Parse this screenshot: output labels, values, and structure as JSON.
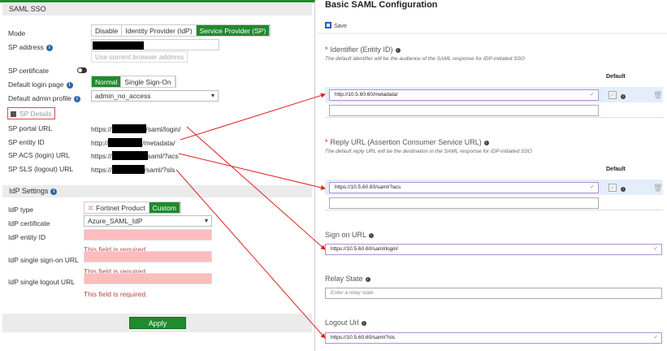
{
  "left": {
    "header": "SAML SSO",
    "mode": {
      "label": "Mode",
      "options": [
        "Disable",
        "Identity Provider (IdP)",
        "Service Provider (SP)"
      ],
      "selected": "Service Provider (SP)"
    },
    "sp_address": {
      "label": "SP address",
      "button": "Use current browser address"
    },
    "sp_certificate": {
      "label": "SP certificate",
      "enabled": false
    },
    "default_login_page": {
      "label": "Default login page",
      "options": [
        "Normal",
        "Single Sign-On"
      ],
      "selected": "Normal"
    },
    "default_admin_profile": {
      "label": "Default admin profile",
      "value": "admin_no_access"
    },
    "sp_details": {
      "label": "SP Details",
      "rows": [
        {
          "label": "SP portal URL",
          "prefix": "https://",
          "suffix": "/saml/login/"
        },
        {
          "label": "SP entity ID",
          "prefix": "http://",
          "suffix": "/metadata/"
        },
        {
          "label": "SP ACS (login) URL",
          "prefix": "https://",
          "suffix": "saml/?acs"
        },
        {
          "label": "SP SLS (logout) URL",
          "prefix": "https://",
          "suffix": "/saml/?sls"
        }
      ]
    },
    "idp_header": "IdP Settings",
    "idp_type": {
      "label": "IdP type",
      "options": [
        "Fortinet Product",
        "Custom"
      ],
      "selected": "Custom"
    },
    "idp_certificate": {
      "label": "IdP certificate",
      "value": "Azure_SAML_IdP"
    },
    "idp_entity_id": {
      "label": "IdP entity ID",
      "error": "This field is required."
    },
    "idp_sso_url": {
      "label": "IdP single sign-on URL",
      "error": "This field is required."
    },
    "idp_slo_url": {
      "label": "IdP single logout URL",
      "error": "This field is required."
    },
    "apply": "Apply"
  },
  "right": {
    "title": "Basic SAML Configuration",
    "save": "Save",
    "identifier": {
      "label": "Identifier (Entity ID)",
      "description": "The default identifier will be the audience of the SAML response for IDP-initiated SSO",
      "default_header": "Default",
      "value": "http://10.5.60.60/metadata/"
    },
    "reply": {
      "label": "Reply URL (Assertion Consumer Service URL)",
      "description": "The default reply URL will be the destination in the SAML response for IDP-initiated SSO",
      "default_header": "Default",
      "value": "https://10.5.60.60/saml/?acs"
    },
    "sign_on": {
      "label": "Sign on URL",
      "value": "https://10.5.60.60/saml/login/"
    },
    "relay": {
      "label": "Relay State",
      "placeholder": "Enter a relay state"
    },
    "logout": {
      "label": "Logout Url",
      "value": "https://10.5.60.60/saml/?sls"
    }
  },
  "colors": {
    "fortinet_green": "#1f8a2e",
    "annotation_red": "#e02020",
    "azure_purple": "#b48fd0"
  }
}
